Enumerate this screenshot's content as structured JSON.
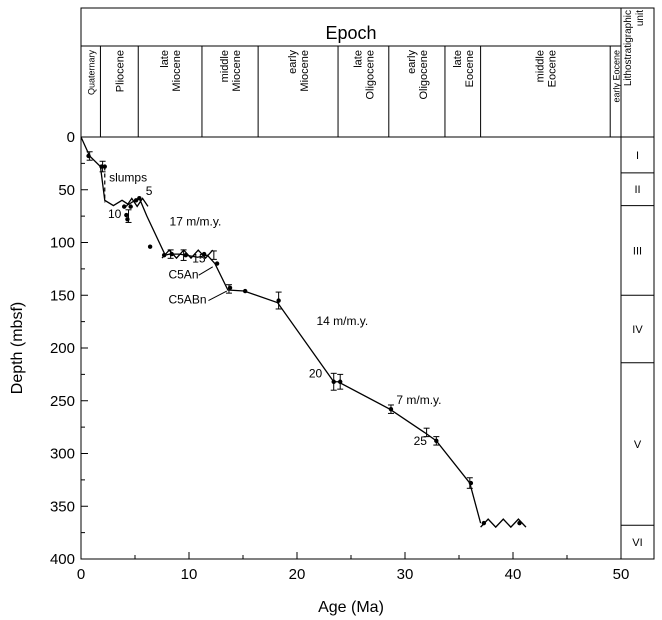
{
  "chart_data": {
    "type": "line",
    "title": "",
    "xlabel": "Age (Ma)",
    "ylabel": "Depth (mbsf)",
    "xlim": [
      0,
      50
    ],
    "ylim": [
      0,
      400
    ],
    "y_inverted": true,
    "x_ticks": [
      0,
      10,
      20,
      30,
      40,
      50
    ],
    "y_ticks": [
      0,
      50,
      100,
      150,
      200,
      250,
      300,
      350,
      400
    ],
    "grid": false,
    "epoch_header": "Epoch",
    "epochs": [
      {
        "label": [
          "Quaternary"
        ],
        "start": 0,
        "end": 1.8
      },
      {
        "label": [
          "Pliocene"
        ],
        "start": 1.8,
        "end": 5.3
      },
      {
        "label": [
          "late",
          "Miocene"
        ],
        "start": 5.3,
        "end": 11.2
      },
      {
        "label": [
          "middle",
          "Miocene"
        ],
        "start": 11.2,
        "end": 16.4
      },
      {
        "label": [
          "early",
          "Miocene"
        ],
        "start": 16.4,
        "end": 23.8
      },
      {
        "label": [
          "late",
          "Oligocene"
        ],
        "start": 23.8,
        "end": 28.5
      },
      {
        "label": [
          "early",
          "Oligocene"
        ],
        "start": 28.5,
        "end": 33.7
      },
      {
        "label": [
          "late",
          "Eocene"
        ],
        "start": 33.7,
        "end": 37.0
      },
      {
        "label": [
          "middle",
          "Eocene"
        ],
        "start": 37.0,
        "end": 49.0
      },
      {
        "label": [
          "early Eocene"
        ],
        "start": 49.0,
        "end": 50
      }
    ],
    "litho_header": [
      "Lithostratigraphic",
      "unit"
    ],
    "litho_units": [
      {
        "label": "I",
        "top": 0,
        "bottom": 34
      },
      {
        "label": "II",
        "top": 34,
        "bottom": 65
      },
      {
        "label": "III",
        "top": 65,
        "bottom": 150
      },
      {
        "label": "IV",
        "top": 150,
        "bottom": 214
      },
      {
        "label": "V",
        "top": 214,
        "bottom": 368
      },
      {
        "label": "VI",
        "top": 368,
        "bottom": 400
      }
    ],
    "age_model": {
      "x": [
        0,
        0.8,
        1.8,
        2.2,
        3.0,
        3.8,
        4.4,
        5.0,
        5.4,
        6.1,
        7.8,
        8.2,
        9.1,
        9.7,
        10.8,
        11.7,
        12.4,
        13.6,
        15.1,
        18.2,
        23.4,
        23.8,
        28.6,
        31.8,
        32.9,
        36.0,
        37.0
      ],
      "y": [
        0,
        18,
        28,
        60,
        65,
        60,
        64,
        60,
        58,
        75,
        112,
        111,
        111,
        112,
        114,
        112,
        120,
        145,
        146,
        157,
        232,
        232,
        258,
        280,
        288,
        328,
        366
      ]
    },
    "datum_points": {
      "x": [
        0.7,
        1.9,
        2.2,
        4.0,
        4.6,
        4.3,
        4.2,
        5.1,
        5.4,
        6.4,
        7.7,
        8.4,
        9.7,
        11.4,
        12.6,
        13.8,
        15.2,
        18.3,
        23.4,
        24.0,
        28.7,
        32.9,
        36.1,
        37.3,
        40.6
      ],
      "y": [
        18,
        28,
        28,
        66,
        66,
        78,
        74,
        60,
        58,
        104,
        112,
        111,
        112,
        111,
        120,
        143,
        146,
        155,
        232,
        232,
        258,
        288,
        328,
        366,
        366
      ]
    },
    "error_bars": [
      {
        "x": 0.8,
        "y": 18,
        "err": 4
      },
      {
        "x": 2.0,
        "y": 28,
        "err": 5
      },
      {
        "x": 4.4,
        "y": 75,
        "err": 6
      },
      {
        "x": 8.3,
        "y": 111,
        "err": 4
      },
      {
        "x": 9.5,
        "y": 112,
        "err": 5
      },
      {
        "x": 12.3,
        "y": 112,
        "err": 4
      },
      {
        "x": 13.7,
        "y": 144,
        "err": 4
      },
      {
        "x": 18.3,
        "y": 155,
        "err": 8
      },
      {
        "x": 23.4,
        "y": 232,
        "err": 8
      },
      {
        "x": 24.0,
        "y": 232,
        "err": 7
      },
      {
        "x": 28.7,
        "y": 258,
        "err": 4
      },
      {
        "x": 32.0,
        "y": 280,
        "err": 4
      },
      {
        "x": 32.9,
        "y": 288,
        "err": 4
      },
      {
        "x": 36.0,
        "y": 328,
        "err": 5
      }
    ],
    "hiatuses": [
      {
        "x": [
          4.2,
          6.2
        ],
        "y": 62
      },
      {
        "x": [
          7.5,
          12.2
        ],
        "y": 111
      },
      {
        "x": [
          37.0,
          41.2
        ],
        "y": 366
      }
    ],
    "annotations": [
      {
        "text": "slumps",
        "x": 2.6,
        "y": 42
      },
      {
        "text": "5",
        "x": 6.0,
        "y": 55
      },
      {
        "text": "10",
        "x": 2.5,
        "y": 77
      },
      {
        "text": "17 m/m.y.",
        "x": 8.2,
        "y": 84
      },
      {
        "text": "15",
        "x": 10.3,
        "y": 119
      },
      {
        "text": "C5An",
        "x": 8.1,
        "y": 134
      },
      {
        "text": "C5ABn",
        "x": 8.1,
        "y": 158
      },
      {
        "text": "14 m/m.y.",
        "x": 21.8,
        "y": 178
      },
      {
        "text": "20",
        "x": 21.1,
        "y": 228
      },
      {
        "text": "7 m/m.y.",
        "x": 29.2,
        "y": 253
      },
      {
        "text": "25",
        "x": 30.8,
        "y": 292
      }
    ],
    "slump_line": {
      "x": [
        2.2,
        2.2
      ],
      "y": [
        28,
        62
      ]
    },
    "leaders": [
      {
        "x": [
          10.9,
          12.2
        ],
        "y": [
          131,
          123
        ]
      },
      {
        "x": [
          11.8,
          13.5
        ],
        "y": [
          155,
          146
        ]
      }
    ]
  }
}
